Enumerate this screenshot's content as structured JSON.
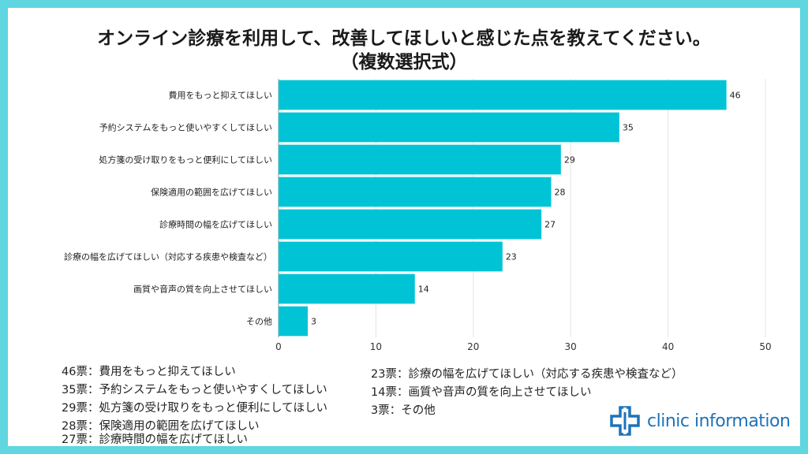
{
  "title_line1": "オンライン診療を利用して、改善してほしいと感じた点を教えてください。",
  "title_line2": "（複数選択式）",
  "colors": {
    "bar": "#00c4d6",
    "frame": "#5fd6e0",
    "logo": "#1e73b8"
  },
  "chart_data": {
    "type": "bar",
    "orientation": "horizontal",
    "categories": [
      "費用をもっと抑えてほしい",
      "予約システムをもっと使いやすくしてほしい",
      "処方箋の受け取りをもっと便利にしてほしい",
      "保険適用の範囲を広げてほしい",
      "診療時間の幅を広げてほしい",
      "診療の幅を広げてほしい（対応する疾患や検査など）",
      "画質や音声の質を向上させてほしい",
      "その他"
    ],
    "values": [
      46,
      35,
      29,
      28,
      27,
      23,
      14,
      3
    ],
    "xlim": [
      0,
      50
    ],
    "xticks": [
      0,
      10,
      20,
      30,
      40,
      50
    ],
    "grid": true
  },
  "legend_left": [
    "46票：費用をもっと抑えてほしい",
    "35票：予約システムをもっと使いやすくしてほしい",
    "29票：処方箋の受け取りをもっと便利にしてほしい",
    "28票：保険適用の範囲を広げてほしい",
    "27票：診療時間の幅を広げてほしい"
  ],
  "legend_right": [
    "23票：診療の幅を広げてほしい（対応する疾患や検査など）",
    "14票：画質や音声の質を向上させてほしい",
    "3票：その他"
  ],
  "logo": {
    "text": "clinic information",
    "icon": "medical-cross-icon"
  }
}
